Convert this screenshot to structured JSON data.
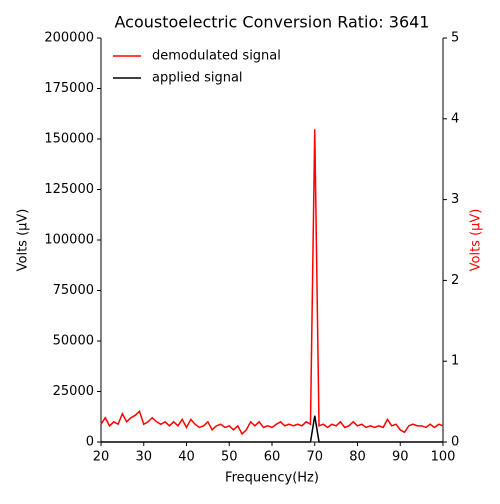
{
  "chart_data": {
    "type": "line",
    "title": "Acoustoelectric Conversion Ratio: 3641",
    "xlabel": "Frequency(Hz)",
    "ylabel": "Volts (μV)",
    "y2label": "Volts (μV)",
    "x": [
      20,
      21,
      22,
      23,
      24,
      25,
      26,
      27,
      28,
      29,
      30,
      31,
      32,
      33,
      34,
      35,
      36,
      37,
      38,
      39,
      40,
      41,
      42,
      43,
      44,
      45,
      46,
      47,
      48,
      49,
      50,
      51,
      52,
      53,
      54,
      55,
      56,
      57,
      58,
      59,
      60,
      61,
      62,
      63,
      64,
      65,
      66,
      67,
      68,
      69,
      70,
      71,
      72,
      73,
      74,
      75,
      76,
      77,
      78,
      79,
      80,
      81,
      82,
      83,
      84,
      85,
      86,
      87,
      88,
      89,
      90,
      91,
      92,
      93,
      94,
      95,
      96,
      97,
      98,
      99,
      100
    ],
    "series": [
      {
        "name": "demodulated signal",
        "color": "#ff0000",
        "axis": "y2",
        "values": [
          0.22,
          0.3,
          0.2,
          0.25,
          0.22,
          0.35,
          0.25,
          0.3,
          0.33,
          0.38,
          0.22,
          0.25,
          0.3,
          0.25,
          0.22,
          0.25,
          0.2,
          0.25,
          0.2,
          0.28,
          0.18,
          0.28,
          0.22,
          0.18,
          0.2,
          0.25,
          0.15,
          0.2,
          0.22,
          0.18,
          0.2,
          0.15,
          0.2,
          0.1,
          0.15,
          0.25,
          0.2,
          0.25,
          0.18,
          0.2,
          0.18,
          0.22,
          0.25,
          0.2,
          0.22,
          0.2,
          0.22,
          0.2,
          0.25,
          0.22,
          3.87,
          0.2,
          0.22,
          0.18,
          0.22,
          0.2,
          0.25,
          0.18,
          0.2,
          0.25,
          0.2,
          0.22,
          0.18,
          0.2,
          0.18,
          0.2,
          0.18,
          0.28,
          0.2,
          0.22,
          0.15,
          0.12,
          0.2,
          0.22,
          0.2,
          0.2,
          0.18,
          0.22,
          0.18,
          0.22,
          0.2
        ]
      },
      {
        "name": "applied signal",
        "color": "#000000",
        "axis": "y",
        "values": [
          0,
          0,
          0,
          0,
          0,
          0,
          0,
          0,
          0,
          0,
          0,
          0,
          0,
          0,
          0,
          0,
          0,
          0,
          0,
          0,
          0,
          0,
          0,
          0,
          0,
          0,
          0,
          0,
          0,
          0,
          0,
          0,
          0,
          0,
          0,
          0,
          0,
          0,
          0,
          0,
          0,
          0,
          0,
          0,
          0,
          0,
          0,
          0,
          0,
          0,
          13000,
          0,
          0,
          0,
          0,
          0,
          0,
          0,
          0,
          0,
          0,
          0,
          0,
          0,
          0,
          0,
          0,
          0,
          0,
          0,
          0,
          0,
          0,
          0,
          0,
          0,
          0,
          0,
          0,
          0,
          0
        ]
      }
    ],
    "xlim": [
      20,
      100
    ],
    "xticks": [
      20,
      30,
      40,
      50,
      60,
      70,
      80,
      90,
      100
    ],
    "ylim": [
      0,
      200000
    ],
    "yticks": [
      0,
      25000,
      50000,
      75000,
      100000,
      125000,
      150000,
      175000,
      200000
    ],
    "y2lim": [
      0,
      5
    ],
    "y2ticks": [
      0,
      1,
      2,
      3,
      4,
      5
    ],
    "y2color": "#ff0000",
    "legend": "upper left",
    "grid": false
  }
}
